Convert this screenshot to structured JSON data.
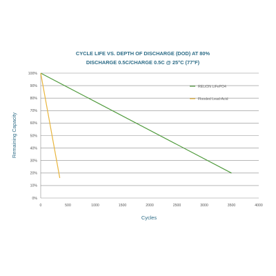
{
  "chart_data": {
    "type": "line",
    "title_line1": "CYCLE LIFE VS. DEPTH OF DISCHARGE (DOD) AT 80%",
    "title_line2": "DISCHARGE 0.5C/CHARGE 0.5C @ 25°C (77°F)",
    "xlabel": "Cycles",
    "ylabel": "Remaining Capacity",
    "xlim": [
      0,
      4000
    ],
    "ylim": [
      0,
      100
    ],
    "x_ticks": [
      0,
      500,
      1000,
      1500,
      2000,
      2500,
      3000,
      3500,
      4000
    ],
    "y_ticks": [
      0,
      10,
      20,
      30,
      40,
      50,
      60,
      70,
      80,
      90,
      100
    ],
    "x_tick_labels": [
      "0",
      "500",
      "1000",
      "1500",
      "2000",
      "2500",
      "3000",
      "3500",
      "4000"
    ],
    "y_tick_labels": [
      "0%",
      "10%",
      "20%",
      "30%",
      "40%",
      "50%",
      "60%",
      "70%",
      "80%",
      "90%",
      "100%"
    ],
    "grid": "horizontal",
    "legend_position": "top-right",
    "series": [
      {
        "name": "RELiON LiFePO4",
        "color": "#4f9a3c",
        "points": [
          [
            0,
            100
          ],
          [
            3500,
            20
          ]
        ]
      },
      {
        "name": "Flooded Lead-Acid",
        "color": "#e8b43a",
        "points": [
          [
            0,
            100
          ],
          [
            350,
            16
          ]
        ]
      }
    ]
  }
}
